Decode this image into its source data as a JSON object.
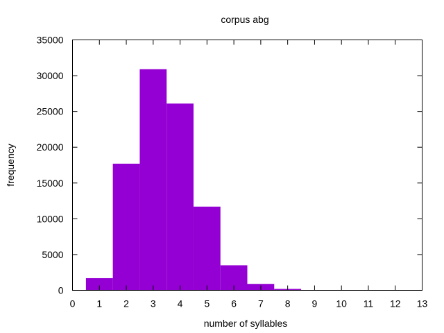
{
  "colors": {
    "bar": "#9400D3",
    "axis": "#000000",
    "background": "#ffffff"
  },
  "chart_data": {
    "type": "bar",
    "title": "corpus abg",
    "xlabel": "number of syllables",
    "ylabel": "frequency",
    "xlim": [
      0,
      13
    ],
    "ylim": [
      0,
      35000
    ],
    "xticks": [
      0,
      1,
      2,
      3,
      4,
      5,
      6,
      7,
      8,
      9,
      10,
      11,
      12,
      13
    ],
    "yticks": [
      0,
      5000,
      10000,
      15000,
      20000,
      25000,
      30000,
      35000
    ],
    "bar_width": 1,
    "x": [
      1,
      2,
      3,
      4,
      5,
      6,
      7,
      8,
      9,
      10,
      11,
      12
    ],
    "values": [
      1700,
      17700,
      30900,
      26100,
      11700,
      3500,
      900,
      200,
      30,
      10,
      5,
      2
    ],
    "grid": false,
    "legend": "none"
  }
}
